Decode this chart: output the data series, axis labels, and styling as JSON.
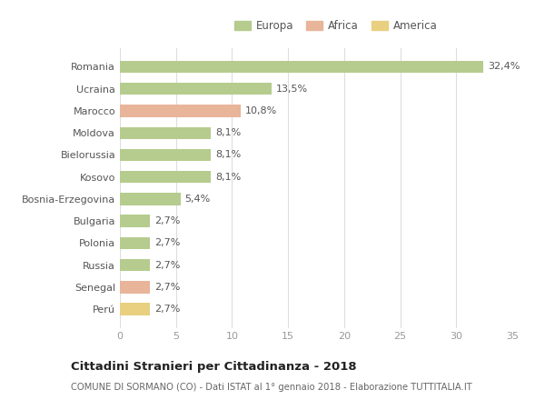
{
  "categories": [
    "Romania",
    "Ucraina",
    "Marocco",
    "Moldova",
    "Bielorussia",
    "Kosovo",
    "Bosnia-Erzegovina",
    "Bulgaria",
    "Polonia",
    "Russia",
    "Senegal",
    "Perú"
  ],
  "values": [
    32.4,
    13.5,
    10.8,
    8.1,
    8.1,
    8.1,
    5.4,
    2.7,
    2.7,
    2.7,
    2.7,
    2.7
  ],
  "labels": [
    "32,4%",
    "13,5%",
    "10,8%",
    "8,1%",
    "8,1%",
    "8,1%",
    "5,4%",
    "2,7%",
    "2,7%",
    "2,7%",
    "2,7%",
    "2,7%"
  ],
  "colors": [
    "#b5cc8e",
    "#b5cc8e",
    "#e8b49a",
    "#b5cc8e",
    "#b5cc8e",
    "#b5cc8e",
    "#b5cc8e",
    "#b5cc8e",
    "#b5cc8e",
    "#b5cc8e",
    "#e8b49a",
    "#e8d080"
  ],
  "legend_labels": [
    "Europa",
    "Africa",
    "America"
  ],
  "legend_colors": [
    "#b5cc8e",
    "#e8b49a",
    "#e8d080"
  ],
  "title": "Cittadini Stranieri per Cittadinanza - 2018",
  "subtitle": "COMUNE DI SORMANO (CO) - Dati ISTAT al 1° gennaio 2018 - Elaborazione TUTTITALIA.IT",
  "xlim": [
    0,
    35
  ],
  "xticks": [
    0,
    5,
    10,
    15,
    20,
    25,
    30,
    35
  ],
  "background_color": "#ffffff",
  "grid_color": "#dddddd",
  "bar_height": 0.55
}
